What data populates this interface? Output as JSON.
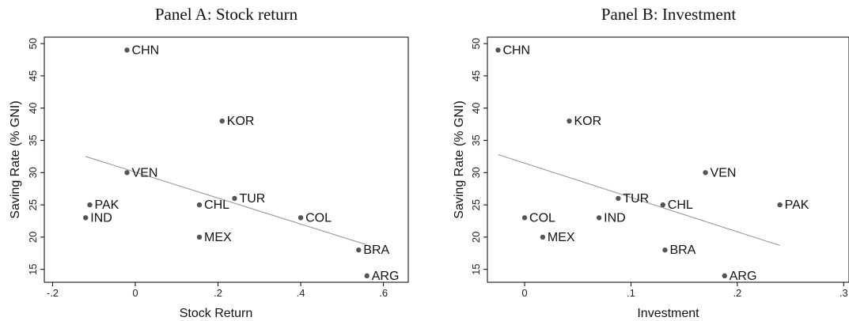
{
  "chart_data": [
    {
      "type": "scatter",
      "title": "Panel A: Stock return",
      "xlabel": "Stock Return",
      "ylabel": "Saving Rate (% GNI)",
      "xlim": [
        -0.22,
        0.66
      ],
      "ylim": [
        13,
        51
      ],
      "xticks": [
        -0.2,
        0,
        0.2,
        0.4,
        0.6
      ],
      "xtick_labels": [
        "-.2",
        "0",
        ".2",
        ".4",
        ".6"
      ],
      "yticks": [
        15,
        20,
        25,
        30,
        35,
        40,
        45,
        50
      ],
      "ytick_labels": [
        "15",
        "20",
        "25",
        "30",
        "35",
        "40",
        "45",
        "50"
      ],
      "points": [
        {
          "label": "CHN",
          "x": -0.02,
          "y": 49
        },
        {
          "label": "KOR",
          "x": 0.21,
          "y": 38
        },
        {
          "label": "VEN",
          "x": -0.02,
          "y": 30
        },
        {
          "label": "PAK",
          "x": -0.11,
          "y": 25
        },
        {
          "label": "IND",
          "x": -0.12,
          "y": 23
        },
        {
          "label": "CHL",
          "x": 0.155,
          "y": 25
        },
        {
          "label": "TUR",
          "x": 0.24,
          "y": 26
        },
        {
          "label": "COL",
          "x": 0.4,
          "y": 23
        },
        {
          "label": "MEX",
          "x": 0.155,
          "y": 20
        },
        {
          "label": "BRA",
          "x": 0.54,
          "y": 18
        },
        {
          "label": "ARG",
          "x": 0.56,
          "y": 14
        }
      ],
      "fit_line": {
        "x": [
          -0.12,
          0.56
        ],
        "y": [
          32.5,
          18.8
        ]
      }
    },
    {
      "type": "scatter",
      "title": "Panel B: Investment",
      "xlabel": "Investment",
      "ylabel": "Saving Rate (% GNI)",
      "xlim": [
        -0.035,
        0.305
      ],
      "ylim": [
        13,
        51
      ],
      "xticks": [
        0,
        0.1,
        0.2,
        0.3
      ],
      "xtick_labels": [
        "0",
        ".1",
        ".2",
        ".3"
      ],
      "yticks": [
        15,
        20,
        25,
        30,
        35,
        40,
        45,
        50
      ],
      "ytick_labels": [
        "15",
        "20",
        "25",
        "30",
        "35",
        "40",
        "45",
        "50"
      ],
      "points": [
        {
          "label": "CHN",
          "x": -0.025,
          "y": 49
        },
        {
          "label": "KOR",
          "x": 0.042,
          "y": 38
        },
        {
          "label": "VEN",
          "x": 0.17,
          "y": 30
        },
        {
          "label": "PAK",
          "x": 0.24,
          "y": 25
        },
        {
          "label": "TUR",
          "x": 0.088,
          "y": 26
        },
        {
          "label": "CHL",
          "x": 0.13,
          "y": 25
        },
        {
          "label": "IND",
          "x": 0.07,
          "y": 23
        },
        {
          "label": "COL",
          "x": 0.0,
          "y": 23
        },
        {
          "label": "MEX",
          "x": 0.017,
          "y": 20
        },
        {
          "label": "BRA",
          "x": 0.132,
          "y": 18
        },
        {
          "label": "ARG",
          "x": 0.188,
          "y": 14
        }
      ],
      "fit_line": {
        "x": [
          -0.025,
          0.24
        ],
        "y": [
          32.8,
          18.7
        ]
      }
    }
  ]
}
